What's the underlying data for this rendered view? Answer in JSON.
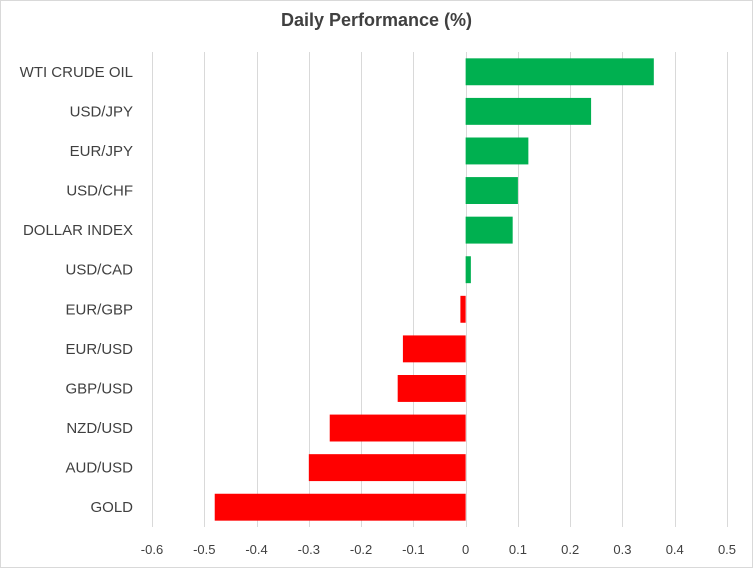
{
  "chart_data": {
    "type": "bar",
    "orientation": "horizontal",
    "title": "Daily Performance (%)",
    "xlabel": "",
    "ylabel": "",
    "categories": [
      "WTI CRUDE OIL",
      "USD/JPY",
      "EUR/JPY",
      "USD/CHF",
      "DOLLAR INDEX",
      "USD/CAD",
      "EUR/GBP",
      "EUR/USD",
      "GBP/USD",
      "NZD/USD",
      "AUD/USD",
      "GOLD"
    ],
    "values": [
      0.36,
      0.24,
      0.12,
      0.1,
      0.09,
      0.01,
      -0.01,
      -0.12,
      -0.13,
      -0.26,
      -0.3,
      -0.48
    ],
    "xlim": [
      -0.6,
      0.5
    ],
    "xticks": [
      "-0.6",
      "-0.5",
      "-0.4",
      "-0.3",
      "-0.2",
      "-0.1",
      "0",
      "0.1",
      "0.2",
      "0.3",
      "0.4",
      "0.5"
    ],
    "grid": true,
    "colors": {
      "positive": "#00b050",
      "negative": "#ff0000",
      "grid": "#d9d9d9",
      "text": "#404040"
    }
  }
}
